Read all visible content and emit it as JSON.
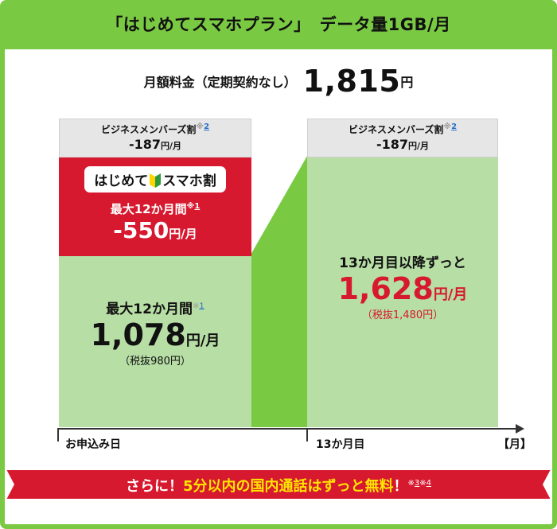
{
  "header": {
    "title": "「はじめてスマホプラン」　データ量1GB/月"
  },
  "monthly_fee": {
    "label": "月額料金（定期契約なし）",
    "amount": "1,815",
    "unit": "円"
  },
  "left": {
    "business_discount": {
      "name": "ビジネスメンバーズ割",
      "mark": "※",
      "note_num": "2",
      "amount": "-187",
      "unit": "円/月"
    },
    "campaign": {
      "badge_part1": "はじめて",
      "badge_part2": "スマホ割",
      "duration": "最大12か月間",
      "mark": "※",
      "note_num": "1",
      "amount": "-550",
      "unit": "円/月"
    },
    "price": {
      "duration": "最大12か月間",
      "mark": "※",
      "note_num": "1",
      "amount": "1,078",
      "unit": "円/月",
      "tax": "（税抜980円）"
    }
  },
  "right": {
    "business_discount": {
      "name": "ビジネスメンバーズ割",
      "mark": "※",
      "note_num": "2",
      "amount": "-187",
      "unit": "円/月"
    },
    "price": {
      "caption": "13か月目以降ずっと",
      "amount": "1,628",
      "unit": "円/月",
      "tax": "（税抜1,480円）"
    }
  },
  "axis": {
    "start": "お申込み日",
    "mid": "13か月目",
    "end": "【月】"
  },
  "ribbon": {
    "prefix": "さらに！",
    "highlight": "5分以内の国内通話はずっと無料",
    "suffix": "！",
    "mark1": "※",
    "num1": "3",
    "mark2": "※",
    "num2": "4"
  },
  "colors": {
    "brand_green": "#7ac943",
    "light_green": "#b7dea5",
    "red": "#d7192f",
    "gray": "#e6e6e6",
    "price_red": "#d7192f"
  }
}
